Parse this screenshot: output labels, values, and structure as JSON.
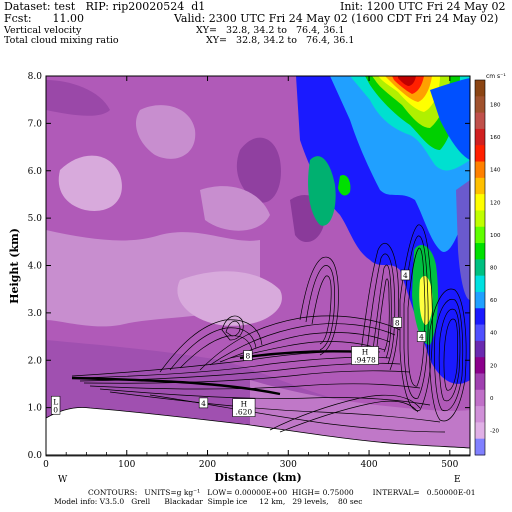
{
  "header": {
    "dataset": "Dataset: test   RIP: rip20020524  d1",
    "init": "Init: 1200 UTC Fri 24 May 02",
    "fcst": "Fcst:      11.00",
    "valid": "Valid: 2300 UTC Fri 24 May 02 (1600 CDT Fri 24 May 02)",
    "field1": "Vertical velocity",
    "xy1": "XY=   32.8, 34.2 to   76.4, 36.1",
    "field2": "Total cloud mixing ratio",
    "xy2": "XY=   32.8, 34.2 to   76.4, 36.1"
  },
  "footer": {
    "contours": "CONTOURS:   UNITS=g kg⁻¹   LOW= 0.00000E+00  HIGH= 0.75000        INTERVAL=   0.50000E-01",
    "model_info": "Model info: V3.5.0   Grell      Blackadar  Simple ice     12 km,   29 levels,    80 sec"
  },
  "colors": {
    "shading_high": "#8b4513",
    "shading_mid": "#00d000",
    "shading_low": "#1010ff",
    "shading_neg": "#8b008b"
  },
  "chart_data": {
    "type": "heatmap",
    "xlabel": "Distance (km)",
    "ylabel": "Height (km)",
    "xlim": [
      0,
      525
    ],
    "ylim": [
      0,
      8
    ],
    "x_ticks": [
      0,
      100,
      200,
      300,
      400,
      500
    ],
    "y_ticks": [
      "0.0",
      "1.0",
      "2.0",
      "3.0",
      "4.0",
      "5.0",
      "6.0",
      "7.0",
      "8.0"
    ],
    "x_end_labels": {
      "left": "W",
      "right": "E"
    },
    "colorbar": {
      "units": "cm s⁻¹",
      "labels": [
        "180",
        "160",
        "140",
        "120",
        "100",
        "80",
        "60",
        "40",
        "20",
        "0",
        "-20"
      ]
    },
    "contour_labels": [
      {
        "x": 12,
        "y": 1.05,
        "text": "L\n0"
      },
      {
        "x": 195,
        "y": 1.1,
        "text": "4"
      },
      {
        "x": 245,
        "y": 1.0,
        "text": "H\n.620"
      },
      {
        "x": 250,
        "y": 2.1,
        "text": "8"
      },
      {
        "x": 395,
        "y": 2.1,
        "text": "H\n.9478"
      },
      {
        "x": 435,
        "y": 2.8,
        "text": "8"
      },
      {
        "x": 445,
        "y": 3.8,
        "text": "4"
      },
      {
        "x": 465,
        "y": 2.5,
        "text": "4"
      }
    ]
  }
}
